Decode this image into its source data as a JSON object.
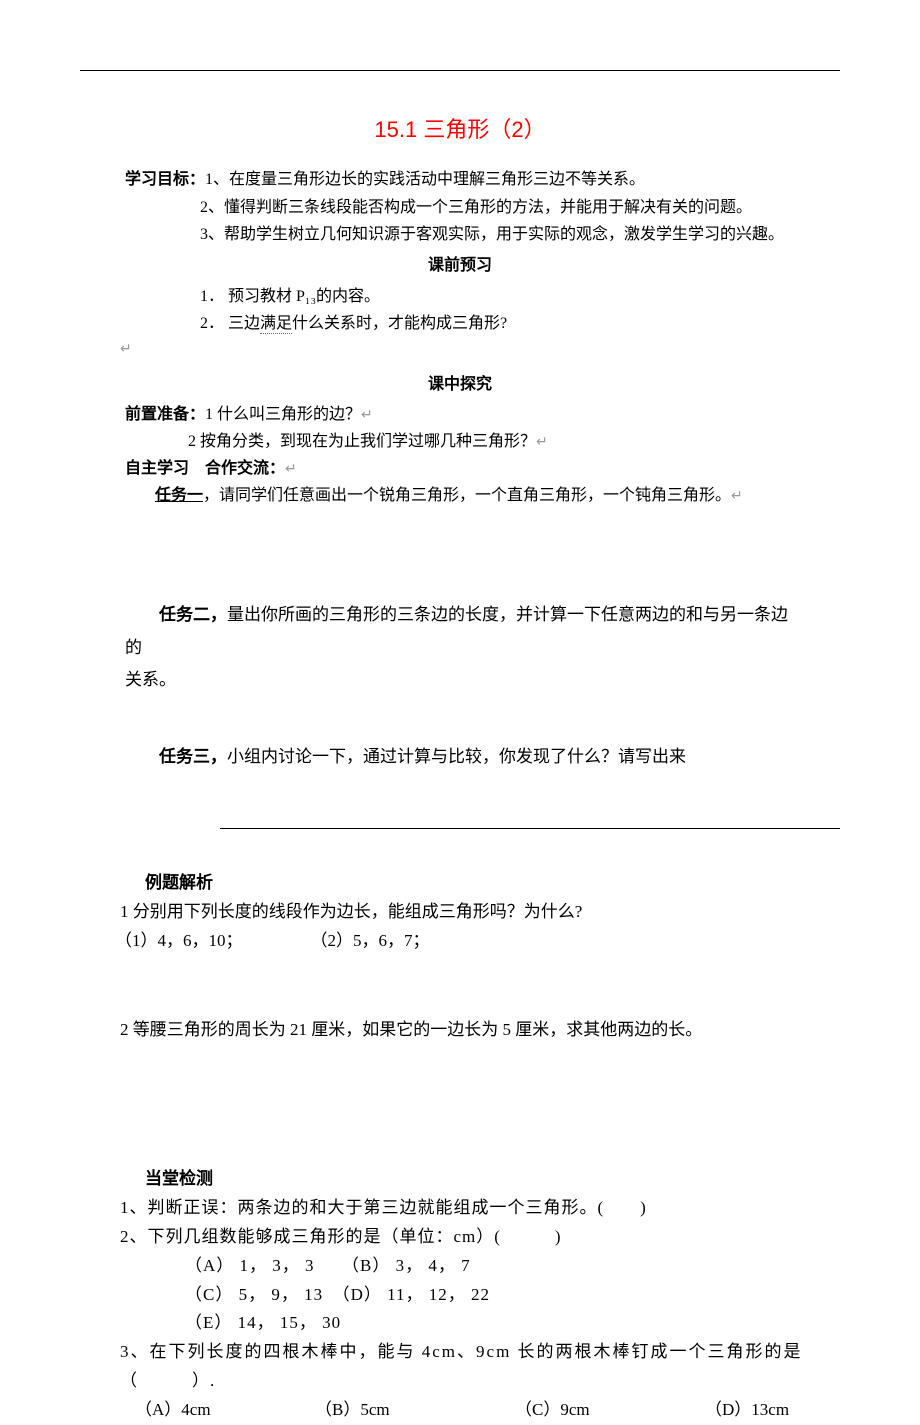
{
  "title": "15.1 三角形（2）",
  "objectives": {
    "label": "学习目标：",
    "items": [
      "1、在度量三角形边长的实践活动中理解三角形三边不等关系。",
      "2、懂得判断三条线段能否构成一个三角形的方法，并能用于解决有关的问题。",
      "3、帮助学生树立几何知识源于客观实际，用于实际的观念，激发学生学习的兴趣。"
    ]
  },
  "preview": {
    "title": "课前预习",
    "items": [
      "1． 预习教材 P₁₃的内容。",
      "2． 三边",
      "什么关系时，才能构成三角形?"
    ],
    "underlined": "满足"
  },
  "explore": {
    "title": "课中探究",
    "prep_label": "前置准备：",
    "prep1": "1 什么叫三角形的边？",
    "prep2": "2 按角分类，到现在为止我们学过哪几种三角形？",
    "coop_label": "自主学习　合作交流：",
    "task1_label": "任务一",
    "task1_body": "，请同学们任意画出一个锐角三角形，一个直角三角形，一个钝角三角形。",
    "task2_label": "任务二，",
    "task2_body": "量出你所画的三角形的三条边的长度，并计算一下任意两边的和与另一条边的",
    "task2_tail": "关系。",
    "task3_label": "任务三，",
    "task3_body": "小组内讨论一下，通过计算与比较，你发现了什么？请写出来"
  },
  "examples": {
    "title": "例题解析",
    "q1": "1 分别用下列长度的线段作为边长，能组成三角形吗？为什么?",
    "q1opts": "（1）4，6，10；　　　　　（2）5，6，7；",
    "q2": "2 等腰三角形的周长为 21 厘米，如果它的一边长为 5 厘米，求其他两边的长。"
  },
  "test": {
    "title": "当堂检测",
    "q1": "1、判断正误：两条边的和大于第三边就能组成一个三角形。(　　)",
    "q2": "2、下列几组数能够成三角形的是（单位：cm）(　　　)",
    "q2_optAB": "（A） 1， 3， 3　　（B） 3， 4， 7",
    "q2_optCD": "（C） 5， 9， 13　（D） 11， 12， 22",
    "q2_optE": "（E） 14， 15， 30",
    "q3": "3、在下列长度的四根木棒中，能与 4cm、9cm 长的两根木棒钉成一个三角形的是",
    "q3_paren": "（　　　）.",
    "q3_opts": {
      "a": "（A）4cm",
      "b": "（B）5cm",
      "c": "（C）9cm",
      "d": "（D）13cm"
    }
  },
  "return_symbol": "↵"
}
